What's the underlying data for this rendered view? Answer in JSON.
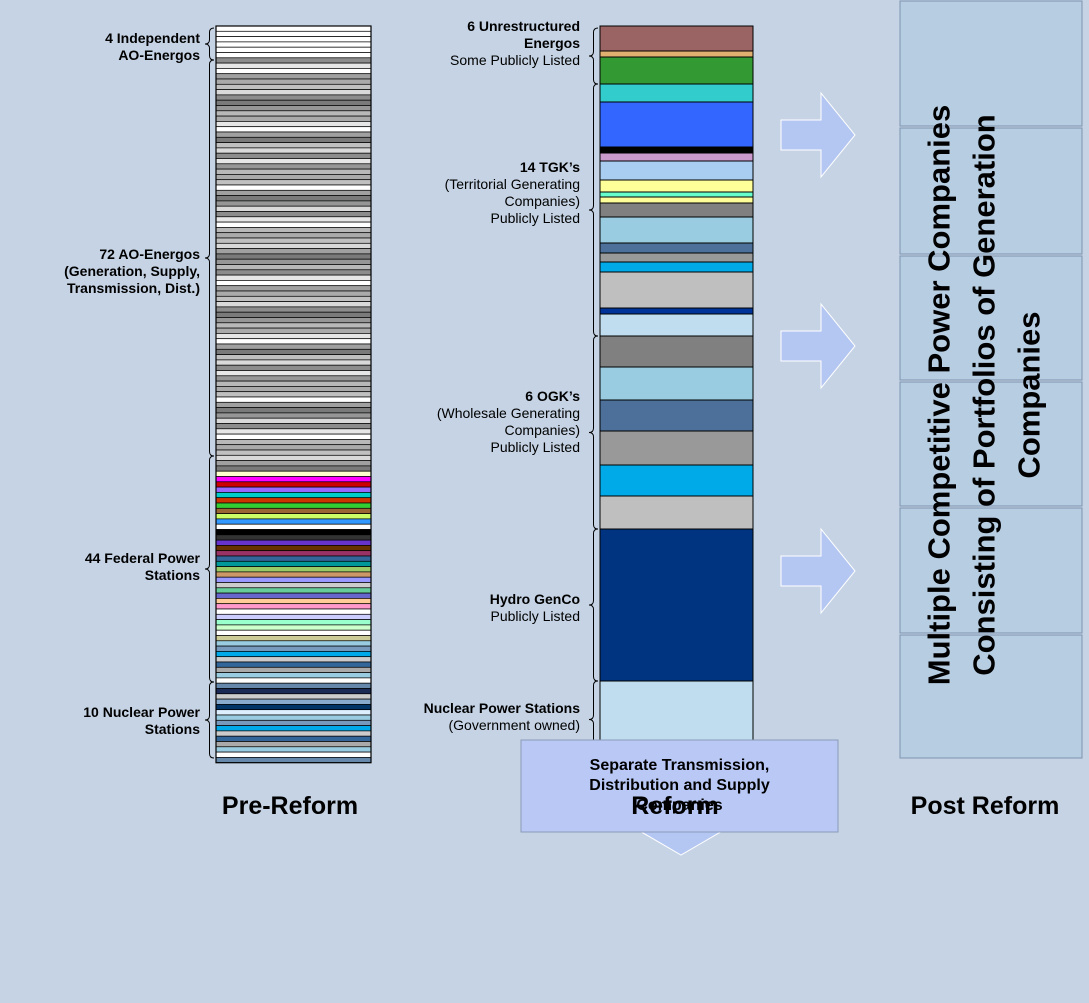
{
  "headers": {
    "pre_reform": "Pre-Reform",
    "reform": "Reform",
    "post_reform": "Post Reform"
  },
  "pre_reform_groups": [
    {
      "lines": [
        {
          "text": "4 Independent",
          "bold": true
        },
        {
          "text": "AO-Energos",
          "bold": true
        }
      ]
    },
    {
      "lines": [
        {
          "text": "72 AO-Energos",
          "bold": true
        },
        {
          "text": "(Generation, Supply,",
          "bold": true
        },
        {
          "text": "Transmission, Dist.)",
          "bold": true
        }
      ]
    },
    {
      "lines": [
        {
          "text": "44 Federal Power",
          "bold": true
        },
        {
          "text": "Stations",
          "bold": true
        }
      ]
    },
    {
      "lines": [
        {
          "text": "10 Nuclear Power",
          "bold": true
        },
        {
          "text": "Stations",
          "bold": true
        }
      ]
    }
  ],
  "reform_groups": [
    {
      "lines": [
        {
          "text": "6 Unrestructured",
          "bold": true
        },
        {
          "text": "Energos",
          "bold": true
        },
        {
          "text": "Some Publicly Listed",
          "bold": false
        }
      ]
    },
    {
      "lines": [
        {
          "text": "14 TGK’s",
          "bold": true
        },
        {
          "text": "(Territorial Generating",
          "bold": false
        },
        {
          "text": "Companies)",
          "bold": false
        },
        {
          "text": "Publicly  Listed",
          "bold": false
        }
      ]
    },
    {
      "lines": [
        {
          "text": "6 OGK’s",
          "bold": true
        },
        {
          "text": "(Wholesale Generating",
          "bold": false
        },
        {
          "text": "Companies)",
          "bold": false
        },
        {
          "text": "Publicly Listed",
          "bold": false
        }
      ]
    },
    {
      "lines": [
        {
          "text": "Hydro GenCo",
          "bold": true
        },
        {
          "text": "Publicly Listed",
          "bold": false
        }
      ]
    },
    {
      "lines": [
        {
          "text": "Nuclear Power Stations",
          "bold": true
        },
        {
          "text": "(Government owned)",
          "bold": false
        }
      ]
    }
  ],
  "post_reform_text": [
    "Multiple Competitive Power Companies",
    "Consisting of Portfolios of Generation",
    "Companies"
  ],
  "separate_box_text": [
    "Separate Transmission,",
    "Distribution and Supply",
    "Companies"
  ],
  "colors": {
    "background": "#c5d3e4",
    "arrow": "#b4c7f3",
    "post_box": "#b6cde2",
    "separate_box": "#b9c8f5",
    "reform_segments": [
      "#9b6464",
      "#e0b070",
      "#339933",
      "#33cccc",
      "#3366ff",
      "#000000",
      "#cc99cc",
      "#a9cdf0",
      "#ffff99",
      "#66ffcc",
      "#808080",
      "#99cce0",
      "#4c7099",
      "#999999",
      "#00aae8",
      "#bfbfbf",
      "#003399",
      "#c0dcef",
      "#808080",
      "#99cce0",
      "#4c7099",
      "#999999",
      "#00aae8",
      "#bfbfbf",
      "#003380",
      "#c0dcef"
    ]
  }
}
